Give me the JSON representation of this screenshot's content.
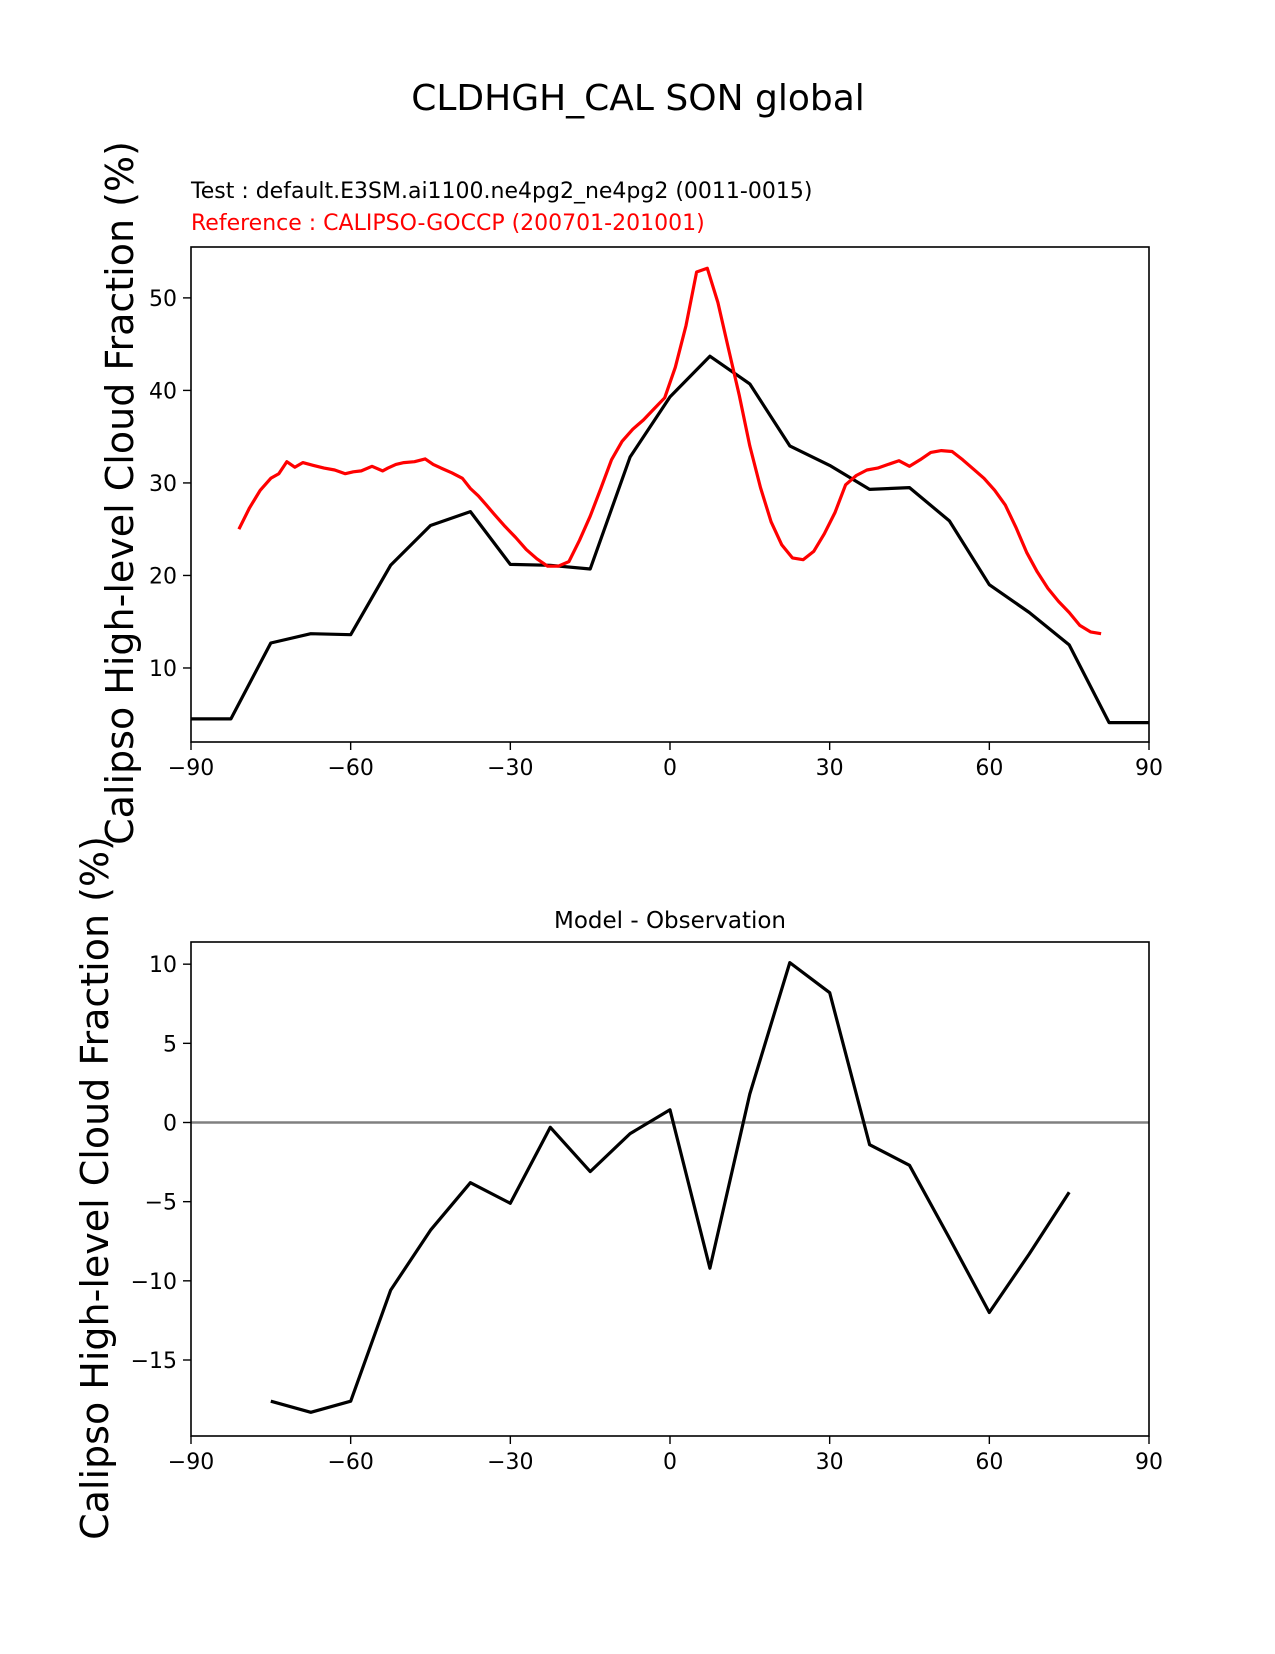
{
  "figure": {
    "title": "CLDHGH_CAL SON global"
  },
  "chart_data": [
    {
      "type": "line",
      "test_label": "Test : default.E3SM.ai1100.ne4pg2_ne4pg2 (0011-0015)",
      "reference_label": "Reference : CALIPSO-GOCCP (200701-201001)",
      "ylabel": "Calipso High-level Cloud Fraction (%)",
      "xlabel": "",
      "xlim": [
        -90,
        90
      ],
      "ylim": [
        2,
        55.5
      ],
      "xticks": [
        -90,
        -60,
        -30,
        0,
        30,
        60,
        90
      ],
      "yticks": [
        10,
        20,
        30,
        40,
        50
      ],
      "xtick_labels": [
        "−90",
        "−60",
        "−30",
        "0",
        "30",
        "60",
        "90"
      ],
      "ytick_labels": [
        "10",
        "20",
        "30",
        "40",
        "50"
      ],
      "colors": {
        "test": "#000000",
        "reference": "#ff0000"
      },
      "series": [
        {
          "role": "test",
          "x": [
            -90,
            -82.5,
            -75,
            -67.5,
            -60,
            -52.5,
            -45,
            -37.5,
            -30,
            -22.5,
            -15,
            -7.5,
            0,
            7.5,
            15,
            22.5,
            30,
            37.5,
            45,
            52.5,
            60,
            67.5,
            75,
            82.5,
            90
          ],
          "y": [
            4.5,
            4.5,
            12.7,
            13.7,
            13.6,
            21.1,
            25.4,
            26.9,
            21.2,
            21.1,
            20.7,
            32.8,
            39.3,
            43.7,
            40.7,
            34.0,
            31.9,
            29.3,
            29.5,
            25.9,
            19.0,
            16.0,
            12.5,
            4.1,
            4.1
          ]
        },
        {
          "role": "reference",
          "x": [
            -81,
            -79,
            -77,
            -75,
            -73.5,
            -72,
            -70.5,
            -69,
            -67,
            -65,
            -63,
            -61,
            -59.5,
            -58,
            -56,
            -54,
            -53,
            -51.5,
            -50,
            -48,
            -46,
            -44.5,
            -43,
            -41,
            -39,
            -37.5,
            -36,
            -34.5,
            -33,
            -31,
            -29,
            -27,
            -25,
            -23,
            -21,
            -19,
            -17,
            -15,
            -13,
            -11,
            -9,
            -7,
            -5,
            -3,
            -1,
            1,
            3,
            5,
            7,
            9,
            11,
            13,
            15,
            17,
            19,
            21,
            23,
            25,
            27,
            29,
            31,
            33,
            35,
            37,
            39,
            41,
            43,
            45,
            47,
            49,
            51,
            53,
            55,
            57,
            59,
            61,
            63,
            65,
            67,
            69,
            71,
            73,
            75,
            77,
            79,
            81
          ],
          "y": [
            25.0,
            27.3,
            29.2,
            30.5,
            31.0,
            32.3,
            31.7,
            32.2,
            31.9,
            31.6,
            31.4,
            31.0,
            31.2,
            31.3,
            31.8,
            31.3,
            31.6,
            32.0,
            32.2,
            32.3,
            32.6,
            32.0,
            31.6,
            31.1,
            30.5,
            29.4,
            28.6,
            27.6,
            26.6,
            25.3,
            24.1,
            22.8,
            21.8,
            21.0,
            21.0,
            21.5,
            23.8,
            26.4,
            29.4,
            32.5,
            34.5,
            35.8,
            36.8,
            38.0,
            39.2,
            42.5,
            47.0,
            52.8,
            53.2,
            49.5,
            44.5,
            39.5,
            34.0,
            29.5,
            25.8,
            23.3,
            21.9,
            21.7,
            22.6,
            24.5,
            26.8,
            29.8,
            30.8,
            31.4,
            31.6,
            32.0,
            32.4,
            31.8,
            32.5,
            33.3,
            33.5,
            33.4,
            32.5,
            31.5,
            30.5,
            29.2,
            27.6,
            25.2,
            22.5,
            20.4,
            18.6,
            17.2,
            16.0,
            14.6,
            13.9,
            13.7
          ]
        }
      ]
    },
    {
      "type": "line",
      "title": "Model - Observation",
      "ylabel": "Calipso High-level Cloud Fraction (%)",
      "xlabel": "",
      "xlim": [
        -90,
        90
      ],
      "ylim": [
        -19.8,
        11.4
      ],
      "xticks": [
        -90,
        -60,
        -30,
        0,
        30,
        60,
        90
      ],
      "yticks": [
        10,
        5,
        0,
        -5,
        -10,
        -15
      ],
      "xtick_labels": [
        "−90",
        "−60",
        "−30",
        "0",
        "30",
        "60",
        "90"
      ],
      "ytick_labels": [
        "10",
        "5",
        "0",
        "−5",
        "−10",
        "−15"
      ],
      "zero_line_color": "#808080",
      "series": [
        {
          "role": "difference",
          "x": [
            -75,
            -67.5,
            -60,
            -52.5,
            -45,
            -37.5,
            -30,
            -22.5,
            -15,
            -7.5,
            0,
            7.5,
            15,
            22.5,
            30,
            37.5,
            45,
            52.5,
            60,
            67.5,
            75
          ],
          "y": [
            -17.6,
            -18.3,
            -17.6,
            -10.6,
            -6.8,
            -3.8,
            -5.1,
            -0.3,
            -3.1,
            -0.7,
            0.8,
            -9.2,
            1.8,
            10.1,
            8.2,
            -1.4,
            -2.7,
            -7.3,
            -12.0,
            -8.3,
            -4.4
          ]
        }
      ]
    }
  ]
}
